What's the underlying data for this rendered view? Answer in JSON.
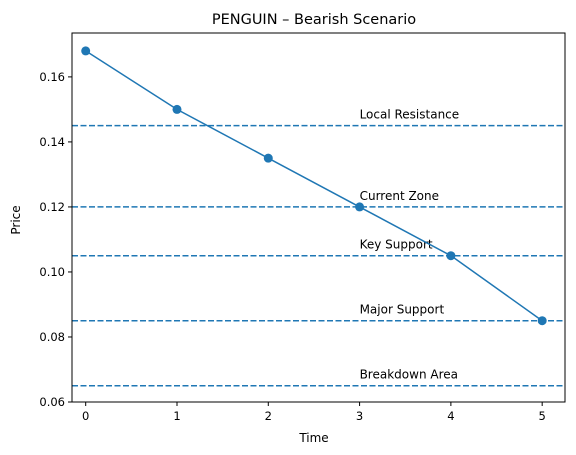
{
  "chart_data": {
    "type": "line",
    "title": "PENGUIN – Bearish Scenario",
    "xlabel": "Time",
    "ylabel": "Price",
    "xlim": [
      -0.15,
      5.25
    ],
    "ylim": [
      0.06,
      0.1735
    ],
    "x_ticks": [
      0,
      1,
      2,
      3,
      4,
      5
    ],
    "x_tick_labels": [
      "0",
      "1",
      "2",
      "3",
      "4",
      "5"
    ],
    "y_ticks": [
      0.06,
      0.08,
      0.1,
      0.12,
      0.14,
      0.16
    ],
    "y_tick_labels": [
      "0.06",
      "0.08",
      "0.10",
      "0.12",
      "0.14",
      "0.16"
    ],
    "grid": false,
    "series": [
      {
        "x": [
          0,
          1,
          2,
          3,
          4,
          5
        ],
        "y": [
          0.168,
          0.15,
          0.135,
          0.12,
          0.105,
          0.085
        ],
        "color": "#1f77b4",
        "marker": "circle"
      }
    ],
    "levels": [
      {
        "label": "Local Resistance",
        "y": 0.145,
        "label_x": 3
      },
      {
        "label": "Current Zone",
        "y": 0.12,
        "label_x": 3
      },
      {
        "label": "Key Support",
        "y": 0.105,
        "label_x": 3
      },
      {
        "label": "Major Support",
        "y": 0.085,
        "label_x": 3
      },
      {
        "label": "Breakdown Area",
        "y": 0.065,
        "label_x": 3
      }
    ],
    "level_color": "#1f77b4",
    "level_style": "dashed"
  }
}
